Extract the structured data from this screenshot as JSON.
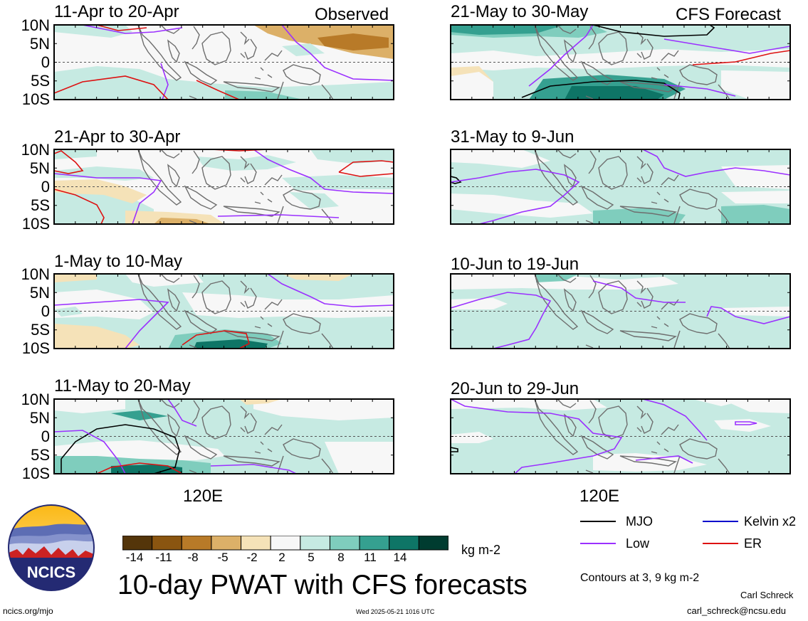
{
  "tags": {
    "left": "Observed",
    "right": "CFS Forecast"
  },
  "panels": [
    {
      "title": "11-Apr to 20-Apr"
    },
    {
      "title": "21-May to 30-May"
    },
    {
      "title": "21-Apr to 30-Apr"
    },
    {
      "title": "31-May to 9-Jun"
    },
    {
      "title": "1-May to 10-May"
    },
    {
      "title": "10-Jun to 19-Jun"
    },
    {
      "title": "11-May to 20-May"
    },
    {
      "title": "20-Jun to 29-Jun"
    }
  ],
  "lat_labels": [
    "10N",
    "5N",
    "0",
    "5S",
    "10S"
  ],
  "lon_label": "120E",
  "colorbar": {
    "ticks": [
      "-14",
      "-11",
      "-8",
      "-5",
      "-2",
      "2",
      "5",
      "8",
      "11",
      "14"
    ],
    "colors": [
      "#54350a",
      "#8a5510",
      "#b87a28",
      "#dcb068",
      "#f5e2b8",
      "#f7f7f7",
      "#c6eae2",
      "#7fcdbd",
      "#35a090",
      "#0e7566",
      "#003c30"
    ],
    "units": "kg m-2"
  },
  "legend": {
    "items": [
      {
        "label": "MJO",
        "color": "#000000"
      },
      {
        "label": "Kelvin x2",
        "color": "#0000cc"
      },
      {
        "label": "Low",
        "color": "#9b30ff"
      },
      {
        "label": "ER",
        "color": "#dd1111"
      }
    ],
    "contours": "Contours at 3, 9 kg m-2"
  },
  "logo": {
    "text": "NCICS"
  },
  "main_title": "10-day PWAT with CFS forecasts",
  "footer": {
    "left": "ncics.org/mjo",
    "center": "Wed 2025-05-21 1016 UTC",
    "author": "Carl Schreck",
    "email": "carl_schreck@ncsu.edu"
  }
}
